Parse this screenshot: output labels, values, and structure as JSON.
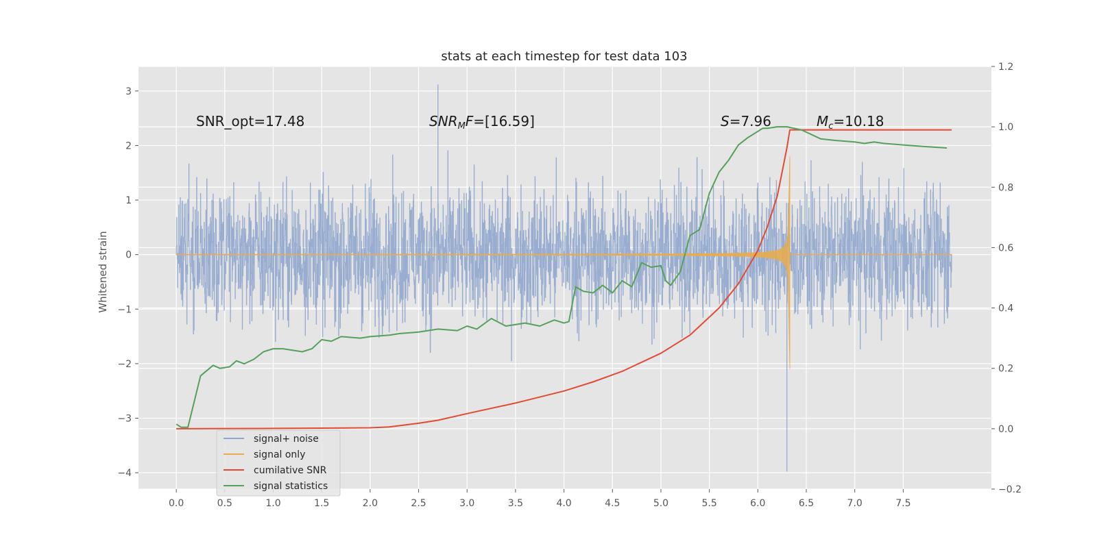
{
  "chart_data": {
    "type": "line",
    "title": "stats at each timestep for test data 103",
    "ylabel": "Whitened strain",
    "xlabel": "",
    "xlim": [
      -0.39,
      8.41
    ],
    "ylim_left": [
      -4.3,
      3.45
    ],
    "ylim_right": [
      -0.2,
      1.2
    ],
    "x_ticks": [
      "0.0",
      "0.5",
      "1.0",
      "1.5",
      "2.0",
      "2.5",
      "3.0",
      "3.5",
      "4.0",
      "4.5",
      "5.0",
      "5.5",
      "6.0",
      "6.5",
      "7.0",
      "7.5"
    ],
    "x_tick_values": [
      0,
      0.5,
      1,
      1.5,
      2,
      2.5,
      3,
      3.5,
      4,
      4.5,
      5,
      5.5,
      6,
      6.5,
      7,
      7.5
    ],
    "y_left_ticks": [
      "3",
      "2",
      "1",
      "0",
      "−1",
      "−2",
      "−3",
      "−4"
    ],
    "y_left_tick_values": [
      3,
      2,
      1,
      0,
      -1,
      -2,
      -3,
      -4
    ],
    "y_right_ticks": [
      "1.2",
      "1.0",
      "0.8",
      "0.6",
      "0.4",
      "0.2",
      "0.0",
      "−0.2"
    ],
    "y_right_tick_values": [
      1.2,
      1.0,
      0.8,
      0.6,
      0.4,
      0.2,
      0.0,
      -0.2
    ],
    "grid": true,
    "legend_position": "bottom-left",
    "annotations": {
      "snr_opt": "SNR_opt=17.48",
      "snr_mf_italic": "SNR",
      "snr_mf_sub": "M",
      "snr_mf_rest_italic": "F",
      "snr_mf_value": "=[16.59]",
      "s_italic": "S",
      "s_value": "=7.96",
      "mc_italic": "M",
      "mc_sub": "c",
      "mc_value": "=10.18"
    },
    "noise_profile": {
      "t_start": 0.0,
      "t_end": 8.0,
      "typical_range": [
        -1.9,
        2.0
      ],
      "max": 3.12,
      "min": -3.98
    },
    "signal_profile": {
      "merger_time": 6.33,
      "peak_positive": 1.8,
      "peak_negative": -2.1
    },
    "series": [
      {
        "name": "signal+ noise",
        "axis": "left",
        "color": "#8fa6cc"
      },
      {
        "name": "signal only",
        "axis": "left",
        "color": "#e8ac4e"
      },
      {
        "name": "cumilative SNR",
        "axis": "right",
        "color": "#e24a33",
        "x": [
          0.0,
          0.5,
          1.0,
          1.5,
          2.0,
          2.2,
          2.5,
          2.7,
          3.0,
          3.5,
          4.0,
          4.3,
          4.6,
          5.0,
          5.3,
          5.6,
          5.8,
          6.0,
          6.1,
          6.2,
          6.25,
          6.3,
          6.33,
          6.5,
          7.0,
          7.5,
          8.0
        ],
        "values": [
          0.0,
          0.0005,
          0.001,
          0.002,
          0.003,
          0.006,
          0.018,
          0.028,
          0.05,
          0.085,
          0.125,
          0.155,
          0.19,
          0.25,
          0.31,
          0.4,
          0.48,
          0.59,
          0.67,
          0.77,
          0.85,
          0.93,
          0.99,
          0.99,
          0.99,
          0.99,
          0.99
        ]
      },
      {
        "name": "signal statistics",
        "axis": "right",
        "color": "#55a05a",
        "x": [
          0.0,
          0.05,
          0.12,
          0.25,
          0.38,
          0.45,
          0.55,
          0.62,
          0.7,
          0.8,
          0.9,
          1.0,
          1.1,
          1.3,
          1.4,
          1.5,
          1.6,
          1.7,
          1.9,
          2.0,
          2.2,
          2.3,
          2.5,
          2.7,
          2.9,
          3.0,
          3.1,
          3.25,
          3.4,
          3.6,
          3.75,
          3.9,
          4.0,
          4.05,
          4.12,
          4.2,
          4.3,
          4.4,
          4.5,
          4.6,
          4.7,
          4.8,
          4.9,
          5.0,
          5.05,
          5.1,
          5.2,
          5.3,
          5.4,
          5.5,
          5.6,
          5.7,
          5.8,
          5.9,
          6.0,
          6.05,
          6.1,
          6.2,
          6.3,
          6.45,
          6.55,
          6.65,
          6.8,
          7.0,
          7.1,
          7.2,
          7.3,
          7.5,
          7.7,
          7.85,
          7.95
        ],
        "values": [
          0.015,
          0.005,
          0.005,
          0.175,
          0.21,
          0.2,
          0.205,
          0.225,
          0.215,
          0.23,
          0.255,
          0.265,
          0.265,
          0.255,
          0.265,
          0.295,
          0.29,
          0.305,
          0.3,
          0.305,
          0.31,
          0.315,
          0.32,
          0.33,
          0.325,
          0.34,
          0.33,
          0.365,
          0.34,
          0.35,
          0.34,
          0.36,
          0.35,
          0.355,
          0.47,
          0.455,
          0.45,
          0.475,
          0.45,
          0.49,
          0.47,
          0.55,
          0.535,
          0.54,
          0.49,
          0.475,
          0.52,
          0.64,
          0.66,
          0.78,
          0.85,
          0.89,
          0.94,
          0.965,
          0.985,
          0.995,
          0.995,
          1.0,
          1.0,
          0.99,
          0.975,
          0.96,
          0.955,
          0.95,
          0.945,
          0.95,
          0.945,
          0.94,
          0.935,
          0.932,
          0.93
        ]
      }
    ]
  }
}
